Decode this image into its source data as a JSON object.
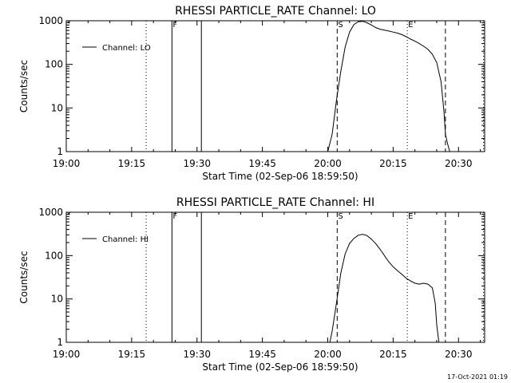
{
  "footer": {
    "timestamp": "17-Oct-2021 01:19"
  },
  "chart_data": [
    {
      "type": "line",
      "title": "RHESSI PARTICLE_RATE Channel: LO",
      "xlabel": "Start Time (02-Sep-06 18:59:50)",
      "ylabel": "Counts/sec",
      "y_scale": "log",
      "ylim": [
        1,
        1000
      ],
      "xlim": [
        "19:00",
        "20:36"
      ],
      "x_ticks": [
        "19:00",
        "19:15",
        "19:30",
        "19:45",
        "20:00",
        "20:15",
        "20:30"
      ],
      "y_ticks": [
        "1",
        "10",
        "100",
        "1000"
      ],
      "legend": {
        "position": "top-left",
        "entries": [
          "Channel: LO"
        ]
      },
      "markers": [
        {
          "label": "F",
          "time": "19:24:15",
          "style": "solid"
        },
        {
          "label": "",
          "time": "19:31:00",
          "style": "solid"
        },
        {
          "label": "S",
          "time": "20:02:10",
          "style": "dashed"
        },
        {
          "label": "",
          "time": "20:27:00",
          "style": "dashed"
        },
        {
          "label": "",
          "time": "19:18:20",
          "style": "dotted"
        },
        {
          "label": "E",
          "time": "20:18:15",
          "style": "dotted"
        },
        {
          "label": "",
          "time": "20:35:45",
          "style": "dotted"
        }
      ],
      "series": [
        {
          "name": "Channel: LO",
          "x": [
            "20:00:00",
            "20:01:00",
            "20:02:00",
            "20:03:00",
            "20:04:00",
            "20:05:00",
            "20:06:00",
            "20:07:00",
            "20:08:00",
            "20:09:00",
            "20:10:00",
            "20:11:00",
            "20:12:00",
            "20:13:00",
            "20:14:00",
            "20:15:00",
            "20:16:00",
            "20:17:00",
            "20:18:00",
            "20:19:00",
            "20:20:00",
            "20:21:00",
            "20:22:00",
            "20:23:00",
            "20:24:00",
            "20:25:00",
            "20:26:00",
            "20:26:40",
            "20:27:00",
            "20:27:30",
            "20:28:00"
          ],
          "y": [
            1.0,
            2.5,
            15,
            70,
            250,
            550,
            820,
            950,
            970,
            900,
            800,
            700,
            640,
            610,
            580,
            550,
            520,
            480,
            430,
            380,
            340,
            300,
            260,
            220,
            170,
            110,
            40,
            8,
            2.5,
            1.5,
            1.0
          ]
        }
      ]
    },
    {
      "type": "line",
      "title": "RHESSI PARTICLE_RATE Channel: HI",
      "xlabel": "Start Time (02-Sep-06 18:59:50)",
      "ylabel": "Counts/sec",
      "y_scale": "log",
      "ylim": [
        1,
        1000
      ],
      "xlim": [
        "19:00",
        "20:36"
      ],
      "x_ticks": [
        "19:00",
        "19:15",
        "19:30",
        "19:45",
        "20:00",
        "20:15",
        "20:30"
      ],
      "y_ticks": [
        "1",
        "10",
        "100",
        "1000"
      ],
      "legend": {
        "position": "top-left",
        "entries": [
          "Channel: HI"
        ]
      },
      "markers": [
        {
          "label": "F",
          "time": "19:24:15",
          "style": "solid"
        },
        {
          "label": "",
          "time": "19:31:00",
          "style": "solid"
        },
        {
          "label": "S",
          "time": "20:02:10",
          "style": "dashed"
        },
        {
          "label": "",
          "time": "20:27:00",
          "style": "dashed"
        },
        {
          "label": "",
          "time": "19:18:20",
          "style": "dotted"
        },
        {
          "label": "E",
          "time": "20:18:15",
          "style": "dotted"
        },
        {
          "label": "",
          "time": "20:35:45",
          "style": "dotted"
        }
      ],
      "series": [
        {
          "name": "Channel: HI",
          "x": [
            "20:00:30",
            "20:01:00",
            "20:02:00",
            "20:03:00",
            "20:04:00",
            "20:05:00",
            "20:06:00",
            "20:07:00",
            "20:08:00",
            "20:09:00",
            "20:10:00",
            "20:11:00",
            "20:12:00",
            "20:13:00",
            "20:14:00",
            "20:15:00",
            "20:16:00",
            "20:17:00",
            "20:18:00",
            "20:19:00",
            "20:20:00",
            "20:21:00",
            "20:22:00",
            "20:23:00",
            "20:24:00",
            "20:24:40",
            "20:25:00",
            "20:25:30"
          ],
          "y": [
            1.0,
            1.8,
            8,
            40,
            110,
            190,
            250,
            295,
            310,
            290,
            240,
            190,
            140,
            100,
            72,
            55,
            45,
            37,
            30,
            26,
            23,
            22,
            23,
            22,
            18,
            8,
            2.5,
            1.0
          ]
        }
      ]
    }
  ]
}
